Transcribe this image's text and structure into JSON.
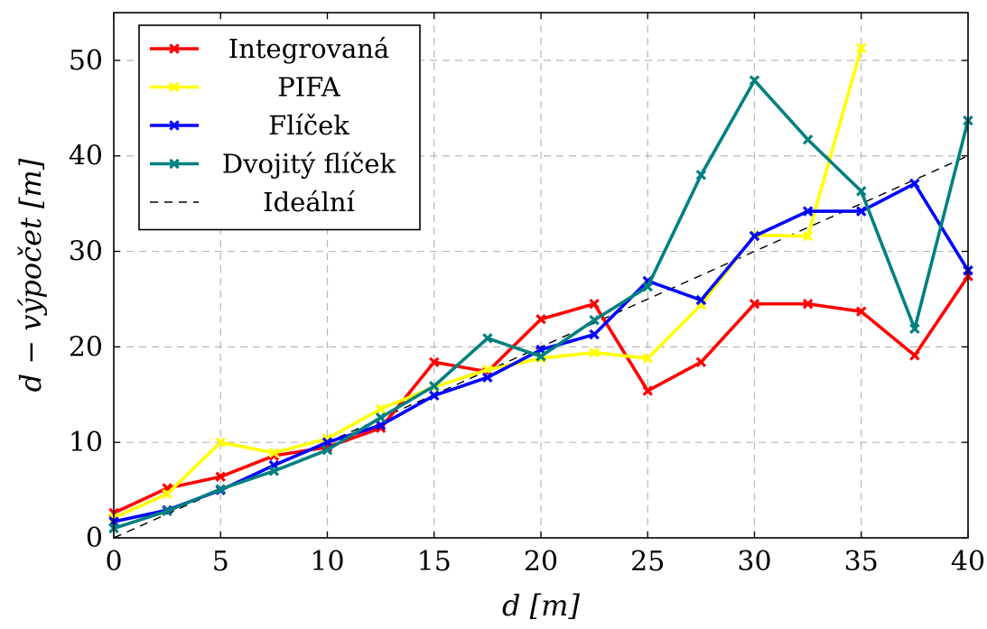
{
  "chart_data": {
    "type": "line",
    "title": "",
    "xlabel": "d [m]",
    "ylabel": "d − výpočet [m]",
    "xlim": [
      0,
      40
    ],
    "ylim": [
      0,
      55
    ],
    "xticks": [
      0,
      5,
      10,
      15,
      20,
      25,
      30,
      35,
      40
    ],
    "yticks": [
      0,
      10,
      20,
      30,
      40,
      50
    ],
    "grid": true,
    "legend_position": "top-left",
    "series": [
      {
        "name": "Integrovaná",
        "color": "#ff0000",
        "marker": "x",
        "x": [
          0,
          2.5,
          5,
          7.5,
          10,
          12.5,
          15,
          17.5,
          20,
          22.5,
          25,
          27.5,
          30,
          32.5,
          35,
          37.5,
          40
        ],
        "y": [
          2.6,
          5.2,
          6.4,
          8.6,
          9.5,
          11.5,
          18.4,
          17.4,
          22.9,
          24.5,
          15.4,
          18.4,
          24.5,
          24.5,
          23.7,
          19.1,
          27.4
        ]
      },
      {
        "name": "PIFA",
        "color": "#ffff00",
        "marker": "x",
        "x": [
          0,
          2.5,
          5,
          7.5,
          10,
          12.5,
          15,
          17.5,
          20,
          22.5,
          25,
          27.5,
          30,
          32.5,
          35
        ],
        "y": [
          2.1,
          4.6,
          10.0,
          8.9,
          10.4,
          13.5,
          15.8,
          17.6,
          18.8,
          19.4,
          18.8,
          24.4,
          31.7,
          31.6,
          51.3
        ]
      },
      {
        "name": "Flíček",
        "color": "#0000ff",
        "marker": "x",
        "x": [
          0,
          2.5,
          5,
          7.5,
          10,
          12.5,
          15,
          17.5,
          20,
          22.5,
          25,
          27.5,
          30,
          32.5,
          35,
          37.5,
          40
        ],
        "y": [
          1.7,
          2.9,
          5.0,
          7.6,
          10.0,
          11.8,
          14.9,
          16.8,
          19.7,
          21.3,
          26.9,
          24.9,
          31.6,
          34.2,
          34.2,
          37.1,
          28.0
        ]
      },
      {
        "name": "Dvojitý flíček",
        "color": "#008080",
        "marker": "x",
        "x": [
          0,
          2.5,
          5,
          7.5,
          10,
          12.5,
          15,
          17.5,
          20,
          22.5,
          25,
          27.5,
          30,
          32.5,
          35,
          37.5,
          40
        ],
        "y": [
          1.0,
          2.8,
          5.1,
          7.0,
          9.2,
          12.6,
          15.9,
          20.9,
          19.0,
          22.8,
          26.3,
          38.0,
          47.9,
          41.7,
          36.3,
          21.9,
          43.7
        ]
      },
      {
        "name": "Ideální",
        "color": "#000000",
        "dashed": true,
        "x": [
          0,
          40
        ],
        "y": [
          0,
          40
        ]
      }
    ]
  }
}
